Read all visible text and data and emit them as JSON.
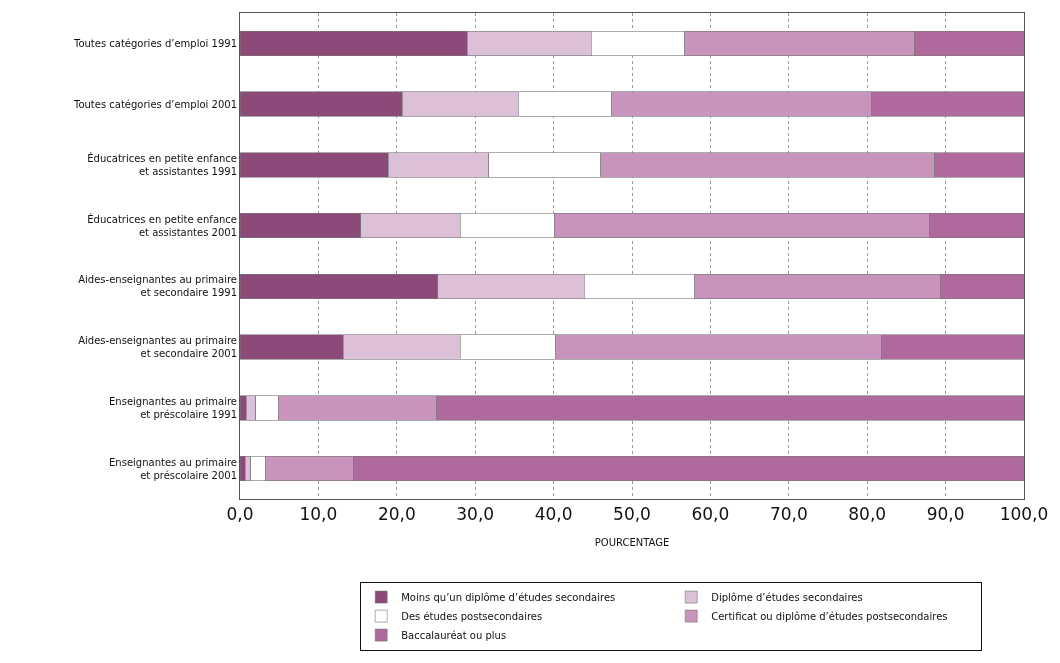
{
  "chart_data": {
    "type": "bar",
    "orientation": "horizontal",
    "stacked": true,
    "xlabel": "POURCENTAGE",
    "categories": [
      "Toutes catégories d’emploi 1991",
      "Toutes catégories d’emploi 2001",
      "Éducatrices en petite enfance\net assistantes 1991",
      "Éducatrices en petite enfance\net assistantes 2001",
      "Aides-enseignantes au primaire\net secondaire 1991",
      "Aides-enseignantes au primaire\net secondaire 2001",
      "Enseignantes au primaire\net préscolaire 1991",
      "Enseignantes au primaire\net préscolaire 2001"
    ],
    "series": [
      {
        "name": "Moins qu’un diplôme d’études secondaires",
        "color": "#8b4a78",
        "values": [
          29.0,
          20.7,
          18.9,
          15.4,
          25.2,
          13.2,
          0.8,
          0.7
        ]
      },
      {
        "name": "Diplôme d’études secondaires",
        "color": "#dcc0d8",
        "values": [
          15.8,
          14.8,
          12.8,
          12.7,
          18.7,
          14.9,
          1.2,
          0.7
        ]
      },
      {
        "name": "Des études postsecondaires",
        "color": "#ffffff",
        "values": [
          11.9,
          11.9,
          14.3,
          12.0,
          14.1,
          12.1,
          2.9,
          1.9
        ]
      },
      {
        "name": "Certificat ou diplôme d’études postsecondaires",
        "color": "#c894bc",
        "values": [
          29.3,
          33.2,
          42.6,
          47.9,
          31.3,
          41.6,
          20.2,
          11.2
        ]
      },
      {
        "name": "Baccalauréat ou plus",
        "color": "#b0699c",
        "values": [
          14.0,
          19.4,
          11.4,
          12.0,
          10.7,
          18.2,
          74.9,
          85.5
        ]
      }
    ],
    "xlim": [
      0,
      100
    ],
    "xticks": [
      {
        "value": 0,
        "label": "0,0"
      },
      {
        "value": 10,
        "label": "10,0"
      },
      {
        "value": 20,
        "label": "20,0"
      },
      {
        "value": 30,
        "label": "30,0"
      },
      {
        "value": 40,
        "label": "40,0"
      },
      {
        "value": 50,
        "label": "50,0"
      },
      {
        "value": 60,
        "label": "60,0"
      },
      {
        "value": 70,
        "label": "70,0"
      },
      {
        "value": 80,
        "label": "80,0"
      },
      {
        "value": 90,
        "label": "90,0"
      },
      {
        "value": 100,
        "label": "100,0"
      }
    ],
    "grid": "x",
    "legend": "bottom"
  }
}
